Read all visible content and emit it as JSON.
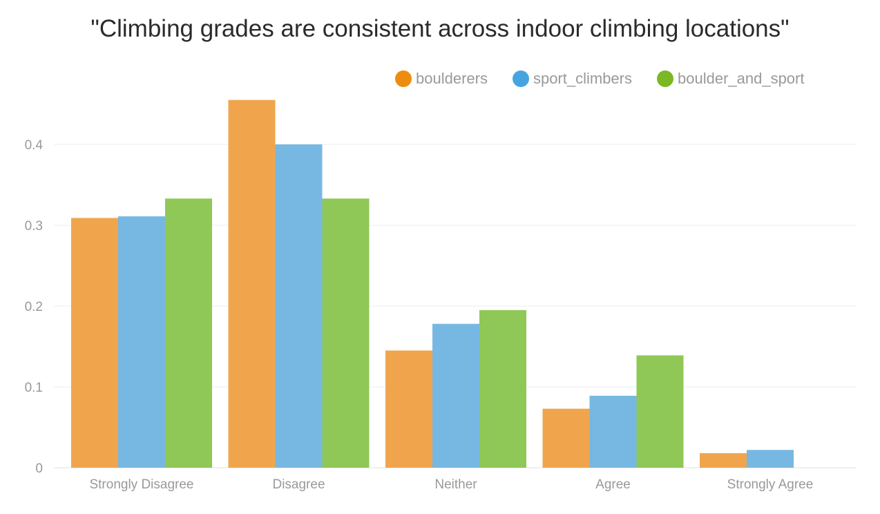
{
  "chart_data": {
    "type": "bar",
    "title": "\"Climbing grades are consistent across indoor climbing locations\"",
    "categories": [
      "Strongly Disagree",
      "Disagree",
      "Neither",
      "Agree",
      "Strongly Agree"
    ],
    "series": [
      {
        "name": "boulderers",
        "color": "#f0a54d",
        "values": [
          0.309,
          0.455,
          0.145,
          0.073,
          0.018
        ]
      },
      {
        "name": "sport_climbers",
        "color": "#77b8e2",
        "values": [
          0.311,
          0.4,
          0.178,
          0.089,
          0.022
        ]
      },
      {
        "name": "boulder_and_sport",
        "color": "#8fc856",
        "values": [
          0.333,
          0.333,
          0.195,
          0.139,
          0
        ]
      }
    ],
    "legend_colors": [
      "#ee8c0f",
      "#46a5e0",
      "#7ab824"
    ],
    "yticks": [
      0,
      0.1,
      0.2,
      0.3,
      0.4
    ],
    "ytick_labels": [
      "0",
      "0.1",
      "0.2",
      "0.3",
      "0.4"
    ],
    "ylim": [
      0,
      0.5
    ],
    "xlabel": "",
    "ylabel": "",
    "grid": true,
    "legend_position": "top-right"
  }
}
